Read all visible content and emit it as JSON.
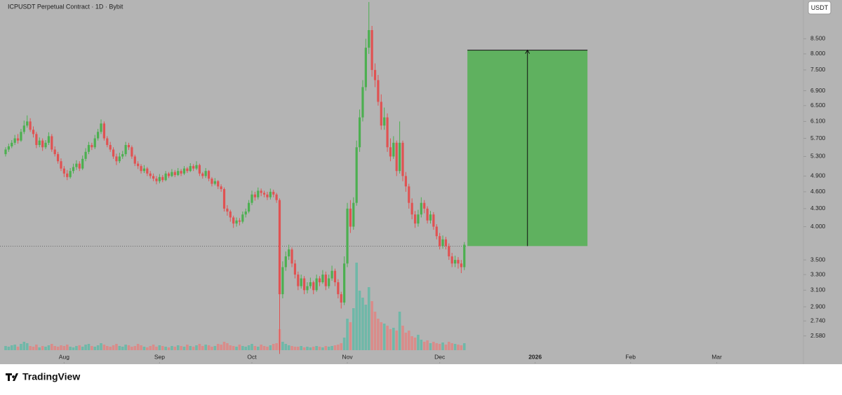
{
  "chart_data": {
    "type": "candlestick",
    "title": "ICPUSDT Perpetual Contract · 1D · Bybit",
    "currency": "USDT",
    "brand": "TradingView",
    "log_scale": true,
    "up_color": "#4caf50",
    "down_color": "#e05252",
    "volume_up_color": "#6fb8a8",
    "volume_down_color": "#d98c8a",
    "ylim": [
      2.31,
      9.93
    ],
    "yticks": [
      {
        "value": 2.58,
        "label": "2.580"
      },
      {
        "value": 2.74,
        "label": "2.740"
      },
      {
        "value": 2.9,
        "label": "2.900"
      },
      {
        "value": 3.1,
        "label": "3.100"
      },
      {
        "value": 3.3,
        "label": "3.300"
      },
      {
        "value": 3.5,
        "label": "3.500"
      },
      {
        "value": 4.0,
        "label": "4.000"
      },
      {
        "value": 4.3,
        "label": "4.300"
      },
      {
        "value": 4.6,
        "label": "4.600"
      },
      {
        "value": 4.9,
        "label": "4.900"
      },
      {
        "value": 5.3,
        "label": "5.300"
      },
      {
        "value": 5.7,
        "label": "5.700"
      },
      {
        "value": 6.1,
        "label": "6.100"
      },
      {
        "value": 6.5,
        "label": "6.500"
      },
      {
        "value": 6.9,
        "label": "6.900"
      },
      {
        "value": 7.5,
        "label": "7.500"
      },
      {
        "value": 8.0,
        "label": "8.000"
      },
      {
        "value": 8.5,
        "label": "8.500"
      }
    ],
    "xlim": [
      0,
      258
    ],
    "xticks": [
      {
        "value": 19,
        "label": "Aug"
      },
      {
        "value": 50,
        "label": "Sep"
      },
      {
        "value": 80,
        "label": "Oct"
      },
      {
        "value": 111,
        "label": "Nov"
      },
      {
        "value": 141,
        "label": "Dec"
      },
      {
        "value": 172,
        "label": "2026"
      },
      {
        "value": 203,
        "label": "Feb"
      },
      {
        "value": 231,
        "label": "Mar"
      }
    ],
    "position": {
      "x": [
        150,
        189
      ],
      "entry": 3.7,
      "target": 8.12,
      "color": "#5fb15f"
    },
    "candles": [
      [
        5.35,
        5.5,
        5.3,
        5.45
      ],
      [
        5.45,
        5.58,
        5.4,
        5.52
      ],
      [
        5.52,
        5.66,
        5.48,
        5.6
      ],
      [
        5.6,
        5.78,
        5.55,
        5.7
      ],
      [
        5.7,
        5.8,
        5.58,
        5.65
      ],
      [
        5.65,
        5.92,
        5.62,
        5.85
      ],
      [
        5.85,
        6.12,
        5.8,
        6.0
      ],
      [
        6.0,
        6.25,
        5.95,
        6.1
      ],
      [
        6.1,
        6.18,
        5.85,
        5.9
      ],
      [
        5.9,
        5.98,
        5.72,
        5.8
      ],
      [
        5.8,
        5.85,
        5.48,
        5.55
      ],
      [
        5.55,
        5.72,
        5.5,
        5.65
      ],
      [
        5.65,
        5.7,
        5.42,
        5.5
      ],
      [
        5.5,
        5.66,
        5.46,
        5.6
      ],
      [
        5.6,
        5.84,
        5.55,
        5.75
      ],
      [
        5.75,
        5.8,
        5.4,
        5.45
      ],
      [
        5.45,
        5.52,
        5.3,
        5.35
      ],
      [
        5.35,
        5.4,
        5.15,
        5.2
      ],
      [
        5.2,
        5.26,
        5.0,
        5.05
      ],
      [
        5.05,
        5.1,
        4.88,
        4.95
      ],
      [
        4.95,
        5.02,
        4.82,
        4.88
      ],
      [
        4.88,
        5.06,
        4.85,
        5.0
      ],
      [
        5.0,
        5.15,
        4.95,
        5.08
      ],
      [
        5.08,
        5.22,
        5.02,
        5.15
      ],
      [
        5.15,
        5.2,
        5.0,
        5.05
      ],
      [
        5.05,
        5.32,
        5.02,
        5.25
      ],
      [
        5.25,
        5.48,
        5.2,
        5.4
      ],
      [
        5.4,
        5.62,
        5.35,
        5.55
      ],
      [
        5.55,
        5.6,
        5.44,
        5.5
      ],
      [
        5.5,
        5.78,
        5.46,
        5.7
      ],
      [
        5.7,
        5.92,
        5.65,
        5.85
      ],
      [
        5.85,
        6.15,
        5.8,
        6.05
      ],
      [
        6.05,
        6.1,
        5.65,
        5.7
      ],
      [
        5.7,
        5.75,
        5.5,
        5.55
      ],
      [
        5.55,
        5.62,
        5.4,
        5.45
      ],
      [
        5.45,
        5.5,
        5.25,
        5.3
      ],
      [
        5.3,
        5.36,
        5.12,
        5.2
      ],
      [
        5.2,
        5.38,
        5.16,
        5.3
      ],
      [
        5.3,
        5.42,
        5.25,
        5.35
      ],
      [
        5.35,
        5.62,
        5.3,
        5.55
      ],
      [
        5.55,
        5.6,
        5.44,
        5.5
      ],
      [
        5.5,
        5.54,
        5.25,
        5.3
      ],
      [
        5.3,
        5.34,
        5.1,
        5.15
      ],
      [
        5.15,
        5.2,
        5.04,
        5.1
      ],
      [
        5.1,
        5.14,
        4.95,
        5.0
      ],
      [
        5.0,
        5.12,
        4.96,
        5.05
      ],
      [
        5.05,
        5.08,
        4.9,
        4.95
      ],
      [
        4.95,
        5.0,
        4.85,
        4.9
      ],
      [
        4.9,
        4.95,
        4.8,
        4.85
      ],
      [
        4.85,
        4.9,
        4.74,
        4.8
      ],
      [
        4.8,
        4.94,
        4.76,
        4.88
      ],
      [
        4.88,
        4.92,
        4.78,
        4.82
      ],
      [
        4.82,
        5.0,
        4.8,
        4.95
      ],
      [
        4.95,
        4.98,
        4.86,
        4.9
      ],
      [
        4.9,
        5.04,
        4.88,
        4.98
      ],
      [
        4.98,
        5.02,
        4.88,
        4.92
      ],
      [
        4.92,
        5.06,
        4.9,
        5.0
      ],
      [
        5.0,
        5.04,
        4.9,
        4.95
      ],
      [
        4.95,
        5.1,
        4.92,
        5.05
      ],
      [
        5.05,
        5.08,
        4.96,
        5.0
      ],
      [
        5.0,
        5.16,
        4.98,
        5.1
      ],
      [
        5.1,
        5.14,
        5.0,
        5.05
      ],
      [
        5.05,
        5.2,
        5.02,
        5.12
      ],
      [
        5.12,
        5.15,
        4.9,
        4.95
      ],
      [
        4.95,
        4.98,
        4.85,
        4.9
      ],
      [
        4.9,
        5.06,
        4.86,
        5.0
      ],
      [
        5.0,
        5.02,
        4.8,
        4.85
      ],
      [
        4.85,
        4.88,
        4.7,
        4.75
      ],
      [
        4.75,
        4.86,
        4.72,
        4.8
      ],
      [
        4.8,
        4.82,
        4.65,
        4.7
      ],
      [
        4.7,
        4.74,
        4.6,
        4.65
      ],
      [
        4.65,
        4.68,
        4.25,
        4.3
      ],
      [
        4.3,
        4.36,
        4.18,
        4.25
      ],
      [
        4.25,
        4.28,
        4.08,
        4.15
      ],
      [
        4.15,
        4.18,
        3.98,
        4.05
      ],
      [
        4.05,
        4.15,
        4.0,
        4.1
      ],
      [
        4.1,
        4.14,
        4.02,
        4.08
      ],
      [
        4.08,
        4.25,
        4.05,
        4.2
      ],
      [
        4.2,
        4.3,
        4.15,
        4.25
      ],
      [
        4.25,
        4.45,
        4.22,
        4.4
      ],
      [
        4.4,
        4.62,
        4.36,
        4.55
      ],
      [
        4.55,
        4.6,
        4.44,
        4.5
      ],
      [
        4.5,
        4.68,
        4.46,
        4.62
      ],
      [
        4.62,
        4.66,
        4.52,
        4.58
      ],
      [
        4.58,
        4.62,
        4.5,
        4.55
      ],
      [
        4.55,
        4.6,
        4.45,
        4.5
      ],
      [
        4.5,
        4.66,
        4.46,
        4.6
      ],
      [
        4.6,
        4.64,
        4.5,
        4.55
      ],
      [
        4.55,
        4.58,
        4.4,
        4.45
      ],
      [
        4.45,
        4.48,
        2.4,
        3.05
      ],
      [
        3.05,
        3.48,
        3.0,
        3.4
      ],
      [
        3.4,
        3.62,
        3.35,
        3.55
      ],
      [
        3.55,
        3.72,
        3.5,
        3.65
      ],
      [
        3.65,
        3.68,
        3.4,
        3.45
      ],
      [
        3.45,
        3.5,
        3.25,
        3.3
      ],
      [
        3.3,
        3.34,
        3.1,
        3.15
      ],
      [
        3.15,
        3.3,
        3.12,
        3.25
      ],
      [
        3.25,
        3.28,
        3.05,
        3.1
      ],
      [
        3.1,
        3.2,
        3.06,
        3.15
      ],
      [
        3.15,
        3.26,
        3.12,
        3.2
      ],
      [
        3.2,
        3.22,
        3.05,
        3.1
      ],
      [
        3.1,
        3.3,
        3.08,
        3.25
      ],
      [
        3.25,
        3.28,
        3.15,
        3.2
      ],
      [
        3.2,
        3.36,
        3.18,
        3.3
      ],
      [
        3.3,
        3.34,
        3.1,
        3.15
      ],
      [
        3.15,
        3.3,
        3.12,
        3.25
      ],
      [
        3.25,
        3.42,
        3.22,
        3.35
      ],
      [
        3.35,
        3.38,
        3.15,
        3.2
      ],
      [
        3.2,
        3.24,
        3.0,
        3.05
      ],
      [
        3.05,
        3.08,
        2.88,
        2.95
      ],
      [
        2.95,
        3.55,
        2.92,
        3.45
      ],
      [
        3.45,
        4.4,
        3.4,
        4.3
      ],
      [
        4.3,
        4.45,
        3.9,
        4.0
      ],
      [
        4.0,
        4.5,
        3.95,
        4.4
      ],
      [
        4.4,
        5.65,
        4.35,
        5.5
      ],
      [
        5.5,
        6.4,
        5.4,
        6.2
      ],
      [
        6.2,
        7.2,
        6.1,
        7.0
      ],
      [
        7.0,
        8.5,
        6.9,
        8.2
      ],
      [
        8.2,
        9.85,
        8.0,
        8.8
      ],
      [
        8.8,
        8.95,
        7.3,
        7.5
      ],
      [
        7.5,
        7.7,
        7.0,
        7.2
      ],
      [
        7.2,
        7.35,
        6.5,
        6.6
      ],
      [
        6.6,
        6.8,
        5.9,
        6.0
      ],
      [
        6.0,
        6.45,
        5.9,
        6.2
      ],
      [
        6.2,
        6.3,
        5.4,
        5.5
      ],
      [
        5.5,
        5.7,
        5.2,
        5.3
      ],
      [
        5.3,
        5.75,
        5.25,
        5.6
      ],
      [
        5.6,
        5.65,
        4.9,
        5.0
      ],
      [
        5.0,
        6.1,
        4.95,
        5.6
      ],
      [
        5.6,
        5.65,
        4.8,
        4.9
      ],
      [
        4.9,
        4.98,
        4.6,
        4.7
      ],
      [
        4.7,
        4.75,
        4.3,
        4.4
      ],
      [
        4.4,
        4.48,
        4.12,
        4.2
      ],
      [
        4.2,
        4.26,
        3.98,
        4.05
      ],
      [
        4.05,
        4.28,
        4.0,
        4.2
      ],
      [
        4.2,
        4.5,
        4.15,
        4.4
      ],
      [
        4.4,
        4.45,
        4.22,
        4.3
      ],
      [
        4.3,
        4.34,
        4.05,
        4.1
      ],
      [
        4.1,
        4.26,
        4.05,
        4.2
      ],
      [
        4.2,
        4.24,
        3.95,
        4.0
      ],
      [
        4.0,
        4.04,
        3.8,
        3.85
      ],
      [
        3.85,
        3.9,
        3.65,
        3.7
      ],
      [
        3.7,
        3.86,
        3.66,
        3.8
      ],
      [
        3.8,
        3.84,
        3.65,
        3.7
      ],
      [
        3.7,
        3.74,
        3.5,
        3.55
      ],
      [
        3.55,
        3.6,
        3.4,
        3.45
      ],
      [
        3.45,
        3.56,
        3.4,
        3.5
      ],
      [
        3.5,
        3.54,
        3.38,
        3.45
      ],
      [
        3.45,
        3.5,
        3.32,
        3.4
      ],
      [
        3.4,
        3.76,
        3.36,
        3.72
      ]
    ],
    "volumes": [
      6,
      5,
      7,
      8,
      5,
      9,
      12,
      10,
      6,
      5,
      8,
      4,
      6,
      5,
      7,
      9,
      6,
      5,
      7,
      6,
      8,
      5,
      4,
      6,
      7,
      5,
      8,
      9,
      6,
      5,
      7,
      10,
      8,
      6,
      5,
      7,
      9,
      6,
      5,
      8,
      7,
      5,
      6,
      9,
      7,
      5,
      4,
      6,
      8,
      5,
      7,
      6,
      5,
      4,
      6,
      5,
      7,
      6,
      5,
      8,
      6,
      5,
      7,
      9,
      6,
      8,
      7,
      5,
      6,
      9,
      8,
      12,
      10,
      7,
      6,
      5,
      8,
      6,
      5,
      7,
      9,
      6,
      5,
      8,
      6,
      5,
      7,
      9,
      10,
      30,
      12,
      9,
      7,
      6,
      5,
      5,
      6,
      4,
      5,
      4,
      5,
      6,
      5,
      4,
      6,
      5,
      6,
      7,
      8,
      10,
      18,
      45,
      40,
      60,
      125,
      85,
      75,
      65,
      90,
      70,
      55,
      45,
      40,
      38,
      35,
      30,
      32,
      28,
      55,
      35,
      25,
      28,
      20,
      18,
      22,
      15,
      12,
      14,
      10,
      12,
      10,
      9,
      11,
      8,
      12,
      10,
      9,
      8,
      7,
      10
    ]
  }
}
